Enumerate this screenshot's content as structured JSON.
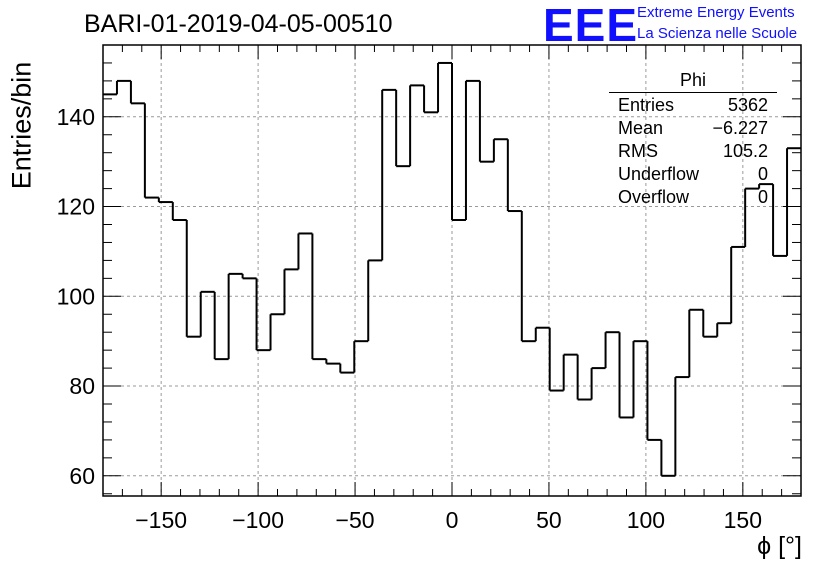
{
  "title": "BARI-01-2019-04-05-00510",
  "logo": {
    "mark": "EEE",
    "line1": "Extreme Energy Events",
    "line2": "La Scienza nelle Scuole",
    "color": "#1010ff"
  },
  "stats_box": {
    "title": "Phi",
    "rows": [
      {
        "label": "Entries",
        "value": "5362"
      },
      {
        "label": "Mean",
        "value": "−6.227"
      },
      {
        "label": "RMS",
        "value": "105.2"
      },
      {
        "label": "Underflow",
        "value": "0"
      },
      {
        "label": "Overflow",
        "value": "0"
      }
    ]
  },
  "chart_data": {
    "type": "bar",
    "style": "step-histogram",
    "title": "BARI-01-2019-04-05-00510",
    "xlabel": "ϕ [°]",
    "ylabel": "Entries/bin",
    "xlim": [
      -180,
      180
    ],
    "ylim": [
      55.5,
      156
    ],
    "grid": true,
    "bin_width": 7.2,
    "bin_edges_start": -180,
    "values": [
      145,
      148,
      143,
      122,
      121,
      117,
      91,
      101,
      86,
      105,
      104,
      88,
      96,
      106,
      114,
      86,
      85,
      83,
      90,
      108,
      146,
      129,
      147,
      141,
      152,
      117,
      148,
      130,
      135,
      119,
      90,
      93,
      79,
      87,
      77,
      84,
      92,
      73,
      90,
      68,
      60,
      82,
      97,
      91,
      94,
      111,
      124,
      125,
      109,
      133
    ],
    "x_ticks": [
      -150,
      -100,
      -50,
      0,
      50,
      100,
      150
    ],
    "x_tick_labels": [
      "−150",
      "−100",
      "−50",
      "0",
      "50",
      "100",
      "150"
    ],
    "y_ticks": [
      60,
      80,
      100,
      120,
      140
    ],
    "y_tick_labels": [
      "60",
      "80",
      "100",
      "120",
      "140"
    ],
    "line_color": "#000000"
  }
}
